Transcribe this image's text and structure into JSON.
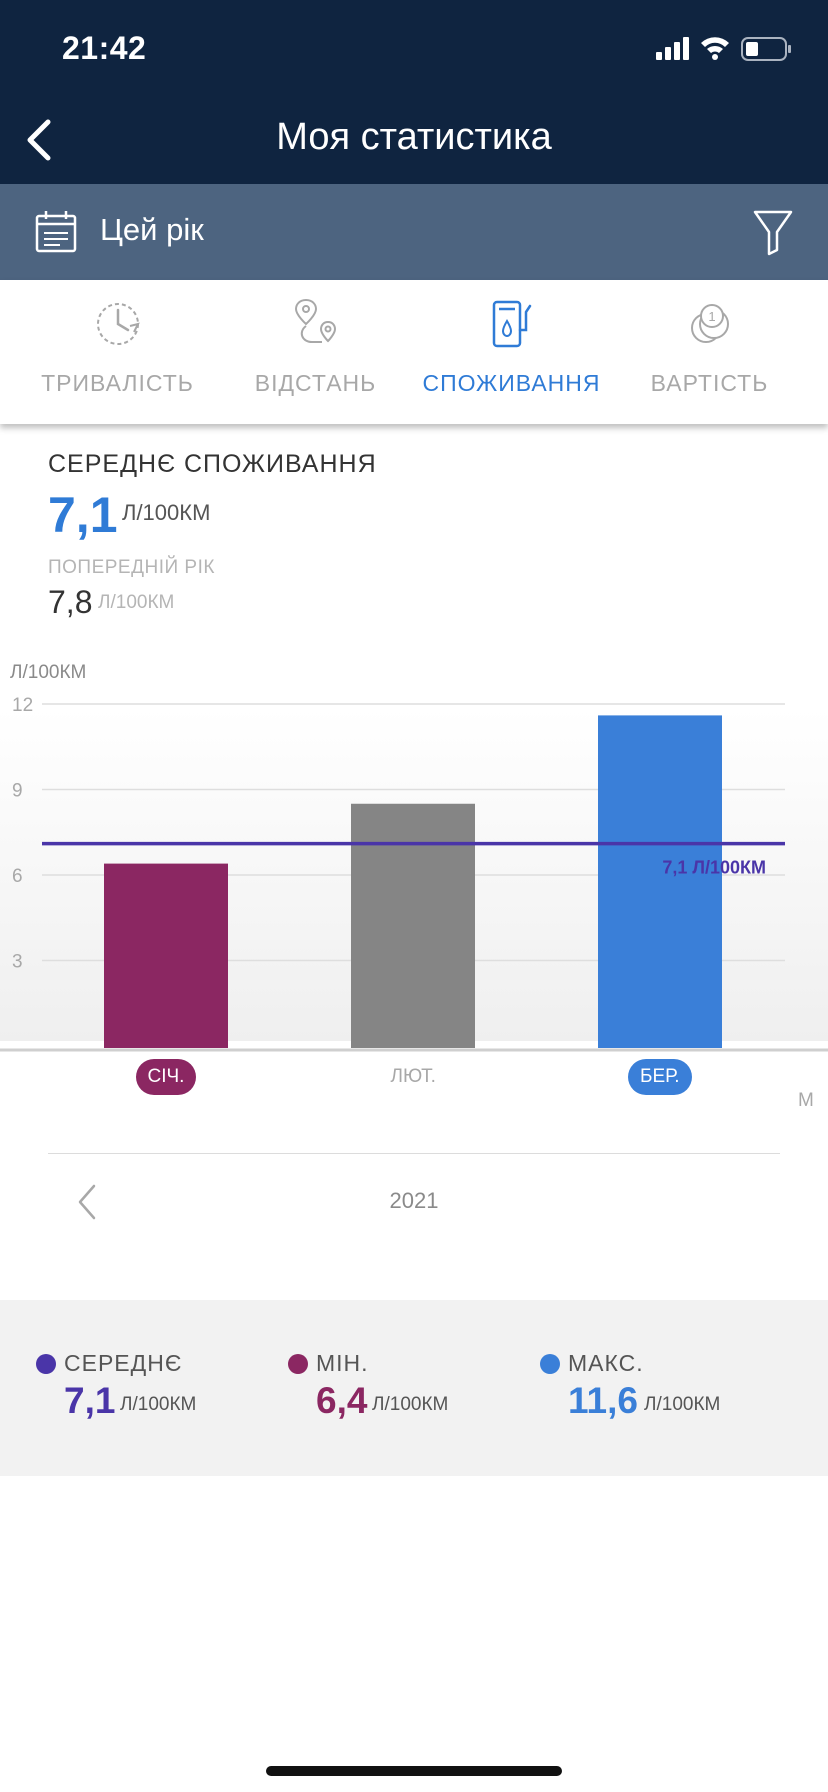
{
  "status_bar": {
    "time": "21:42"
  },
  "header": {
    "title": "Моя статистика"
  },
  "filter": {
    "period": "Цей рік"
  },
  "tabs": [
    {
      "label": "ТРИВАЛІСТЬ",
      "active": false
    },
    {
      "label": "ВІДСТАНЬ",
      "active": false
    },
    {
      "label": "СПОЖИВАННЯ",
      "active": true
    },
    {
      "label": "ВАРТІСТЬ",
      "active": false
    }
  ],
  "summary": {
    "title": "СЕРЕДНЄ СПОЖИВАННЯ",
    "value": "7,1",
    "unit": "Л/100КМ",
    "previous_title": "ПОПЕРЕДНІЙ РІК",
    "previous_value": "7,8",
    "previous_unit": "Л/100КМ"
  },
  "chart_data": {
    "type": "bar",
    "ylabel": "Л/100КМ",
    "ylim": [
      0,
      12
    ],
    "yticks": [
      "3",
      "6",
      "9",
      "12"
    ],
    "categories": [
      "СІЧ.",
      "ЛЮТ.",
      "БЕР."
    ],
    "values": [
      6.4,
      8.5,
      11.6
    ],
    "bar_colors": [
      "#8b2762",
      "#858585",
      "#3a7fd8"
    ],
    "average_line": {
      "value": 7.1,
      "label": "7,1 Л/100КМ",
      "color": "#4a35a8"
    },
    "highlighted_categories": [
      "СІЧ.",
      "БЕР."
    ],
    "edge_label": "М",
    "grid": true
  },
  "navigation": {
    "year": "2021"
  },
  "legend": {
    "average": {
      "title": "СЕРЕДНЄ",
      "value": "7,1",
      "unit": "Л/100КМ",
      "color": "#4a35a8"
    },
    "min": {
      "title": "МІН.",
      "value": "6,4",
      "unit": "Л/100КМ",
      "color": "#8b2762"
    },
    "max": {
      "title": "МАКС.",
      "value": "11,6",
      "unit": "Л/100КМ",
      "color": "#3a7fd8"
    }
  },
  "colors": {
    "header_bg": "#0f2440",
    "filter_bg": "#4d6480",
    "accent": "#2f7bd6"
  }
}
